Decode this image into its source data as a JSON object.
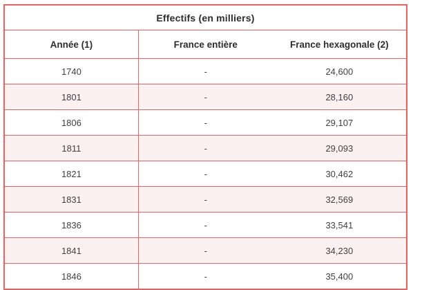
{
  "chart_data": {
    "type": "table",
    "title": "Effectifs (en milliers)",
    "columns": [
      "Année (1)",
      "France entière",
      "France hexagonale (2)"
    ],
    "rows": [
      [
        "1740",
        "-",
        "24,600"
      ],
      [
        "1801",
        "-",
        "28,160"
      ],
      [
        "1806",
        "-",
        "29,107"
      ],
      [
        "1811",
        "-",
        "29,093"
      ],
      [
        "1821",
        "-",
        "30,462"
      ],
      [
        "1831",
        "-",
        "32,569"
      ],
      [
        "1836",
        "-",
        "33,541"
      ],
      [
        "1841",
        "-",
        "34,230"
      ],
      [
        "1846",
        "-",
        "35,400"
      ]
    ],
    "layout": {
      "alternating_row_color": "#fcf1f1",
      "border_color": "#f0605e",
      "text_color": "#3f3f3f",
      "heading_color": "#2d2d2d"
    }
  }
}
